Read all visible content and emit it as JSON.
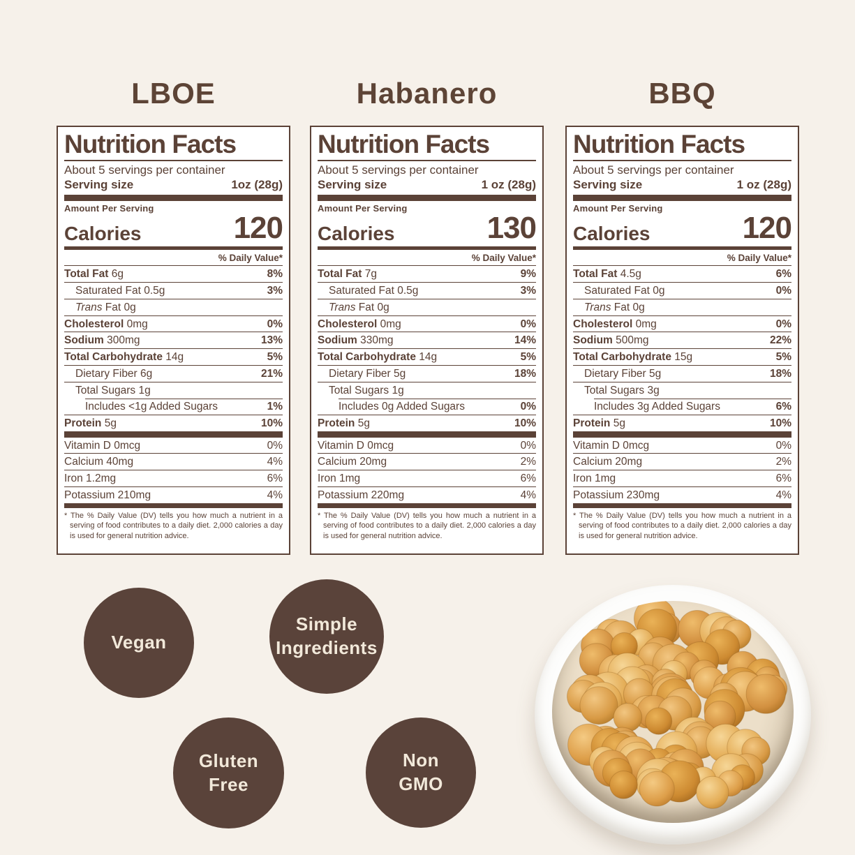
{
  "page": {
    "background": "#f6f1ea",
    "accent": "#5b4237",
    "badge_background": "#5a433a",
    "badge_text_color": "#f2e9da"
  },
  "columns": [
    {
      "title": "LBOE",
      "label": {
        "title": "Nutrition Facts",
        "servings": "About 5 servings per container",
        "serving_size_label": "Serving size",
        "serving_size_value": "1oz (28g)",
        "amount_per_serving": "Amount Per Serving",
        "calories_label": "Calories",
        "calories": "120",
        "daily_value_header": "% Daily Value*",
        "main_rows": [
          {
            "name": "Total Fat",
            "amount": "6g",
            "dv": "8%",
            "b": 1
          },
          {
            "name": "Saturated Fat",
            "amount": "0.5g",
            "dv": "3%",
            "i": 1
          },
          {
            "it": "Trans",
            "name": "Fat",
            "amount": "0g",
            "i": 1
          },
          {
            "name": "Cholesterol",
            "amount": "0mg",
            "dv": "0%",
            "b": 1
          },
          {
            "name": "Sodium",
            "amount": "300mg",
            "dv": "13%",
            "b": 1
          },
          {
            "name": "Total Carbohydrate",
            "amount": "14g",
            "dv": "5%",
            "b": 1
          },
          {
            "name": "Dietary Fiber",
            "amount": "6g",
            "dv": "21%",
            "i": 1
          },
          {
            "name": "Total Sugars",
            "amount": "1g",
            "i": 1
          },
          {
            "name": "Includes <1g Added Sugars",
            "dv": "1%",
            "i": 2
          },
          {
            "name": "Protein",
            "amount": "5g",
            "dv": "10%",
            "b": 1
          }
        ],
        "vitamin_rows": [
          {
            "name": "Vitamin D",
            "amount": "0mcg",
            "dv": "0%"
          },
          {
            "name": "Calcium",
            "amount": "40mg",
            "dv": "4%"
          },
          {
            "name": "Iron",
            "amount": "1.2mg",
            "dv": "6%"
          },
          {
            "name": "Potassium",
            "amount": "210mg",
            "dv": "4%"
          }
        ],
        "footnote": "* The % Daily Value (DV) tells you how much a nutrient in a serving of food contributes to a daily diet. 2,000 calories a day is used for general nutrition advice."
      }
    },
    {
      "title": "Habanero",
      "label": {
        "title": "Nutrition Facts",
        "servings": "About 5 servings per container",
        "serving_size_label": "Serving size",
        "serving_size_value": "1 oz (28g)",
        "amount_per_serving": "Amount Per Serving",
        "calories_label": "Calories",
        "calories": "130",
        "daily_value_header": "% Daily Value*",
        "main_rows": [
          {
            "name": "Total Fat",
            "amount": "7g",
            "dv": "9%",
            "b": 1
          },
          {
            "name": "Saturated Fat",
            "amount": "0.5g",
            "dv": "3%",
            "i": 1
          },
          {
            "it": "Trans",
            "name": "Fat",
            "amount": "0g",
            "i": 1
          },
          {
            "name": "Cholesterol",
            "amount": "0mg",
            "dv": "0%",
            "b": 1
          },
          {
            "name": "Sodium",
            "amount": "330mg",
            "dv": "14%",
            "b": 1
          },
          {
            "name": "Total Carbohydrate",
            "amount": "14g",
            "dv": "5%",
            "b": 1
          },
          {
            "name": "Dietary Fiber",
            "amount": "5g",
            "dv": "18%",
            "i": 1
          },
          {
            "name": "Total Sugars",
            "amount": "1g",
            "i": 1
          },
          {
            "name": "Includes 0g Added Sugars",
            "dv": "0%",
            "i": 2
          },
          {
            "name": "Protein",
            "amount": "5g",
            "dv": "10%",
            "b": 1
          }
        ],
        "vitamin_rows": [
          {
            "name": "Vitamin D",
            "amount": "0mcg",
            "dv": "0%"
          },
          {
            "name": "Calcium",
            "amount": "20mg",
            "dv": "2%"
          },
          {
            "name": "Iron",
            "amount": "1mg",
            "dv": "6%"
          },
          {
            "name": "Potassium",
            "amount": "220mg",
            "dv": "4%"
          }
        ],
        "footnote": "* The % Daily Value (DV) tells you how much a nutrient in a serving of food contributes to a daily diet. 2,000 calories a day is used for general nutrition advice."
      }
    },
    {
      "title": "BBQ",
      "label": {
        "title": "Nutrition Facts",
        "servings": "About 5 servings per container",
        "serving_size_label": "Serving size",
        "serving_size_value": "1 oz (28g)",
        "amount_per_serving": "Amount Per Serving",
        "calories_label": "Calories",
        "calories": "120",
        "daily_value_header": "% Daily Value*",
        "main_rows": [
          {
            "name": "Total Fat",
            "amount": "4.5g",
            "dv": "6%",
            "b": 1
          },
          {
            "name": "Saturated Fat",
            "amount": "0g",
            "dv": "0%",
            "i": 1
          },
          {
            "it": "Trans",
            "name": "Fat",
            "amount": "0g",
            "i": 1
          },
          {
            "name": "Cholesterol",
            "amount": "0mg",
            "dv": "0%",
            "b": 1
          },
          {
            "name": "Sodium",
            "amount": "500mg",
            "dv": "22%",
            "b": 1
          },
          {
            "name": "Total Carbohydrate",
            "amount": "15g",
            "dv": "5%",
            "b": 1
          },
          {
            "name": "Dietary Fiber",
            "amount": "5g",
            "dv": "18%",
            "i": 1
          },
          {
            "name": "Total Sugars",
            "amount": "3g",
            "i": 1
          },
          {
            "name": "Includes 3g Added Sugars",
            "dv": "6%",
            "i": 2
          },
          {
            "name": "Protein",
            "amount": "5g",
            "dv": "10%",
            "b": 1
          }
        ],
        "vitamin_rows": [
          {
            "name": "Vitamin D",
            "amount": "0mcg",
            "dv": "0%"
          },
          {
            "name": "Calcium",
            "amount": "20mg",
            "dv": "2%"
          },
          {
            "name": "Iron",
            "amount": "1mg",
            "dv": "6%"
          },
          {
            "name": "Potassium",
            "amount": "230mg",
            "dv": "4%"
          }
        ],
        "footnote": "* The % Daily Value (DV) tells you how much a nutrient in a serving of food contributes to a daily diet. 2,000 calories a day is used for general nutrition advice."
      }
    }
  ],
  "badges": [
    {
      "label": "Vegan"
    },
    {
      "label": "Simple\nIngredients"
    },
    {
      "label": "Gluten\nFree"
    },
    {
      "label": "Non\nGMO"
    }
  ],
  "photo": {
    "description": "Bowl of roasted chickpeas"
  }
}
